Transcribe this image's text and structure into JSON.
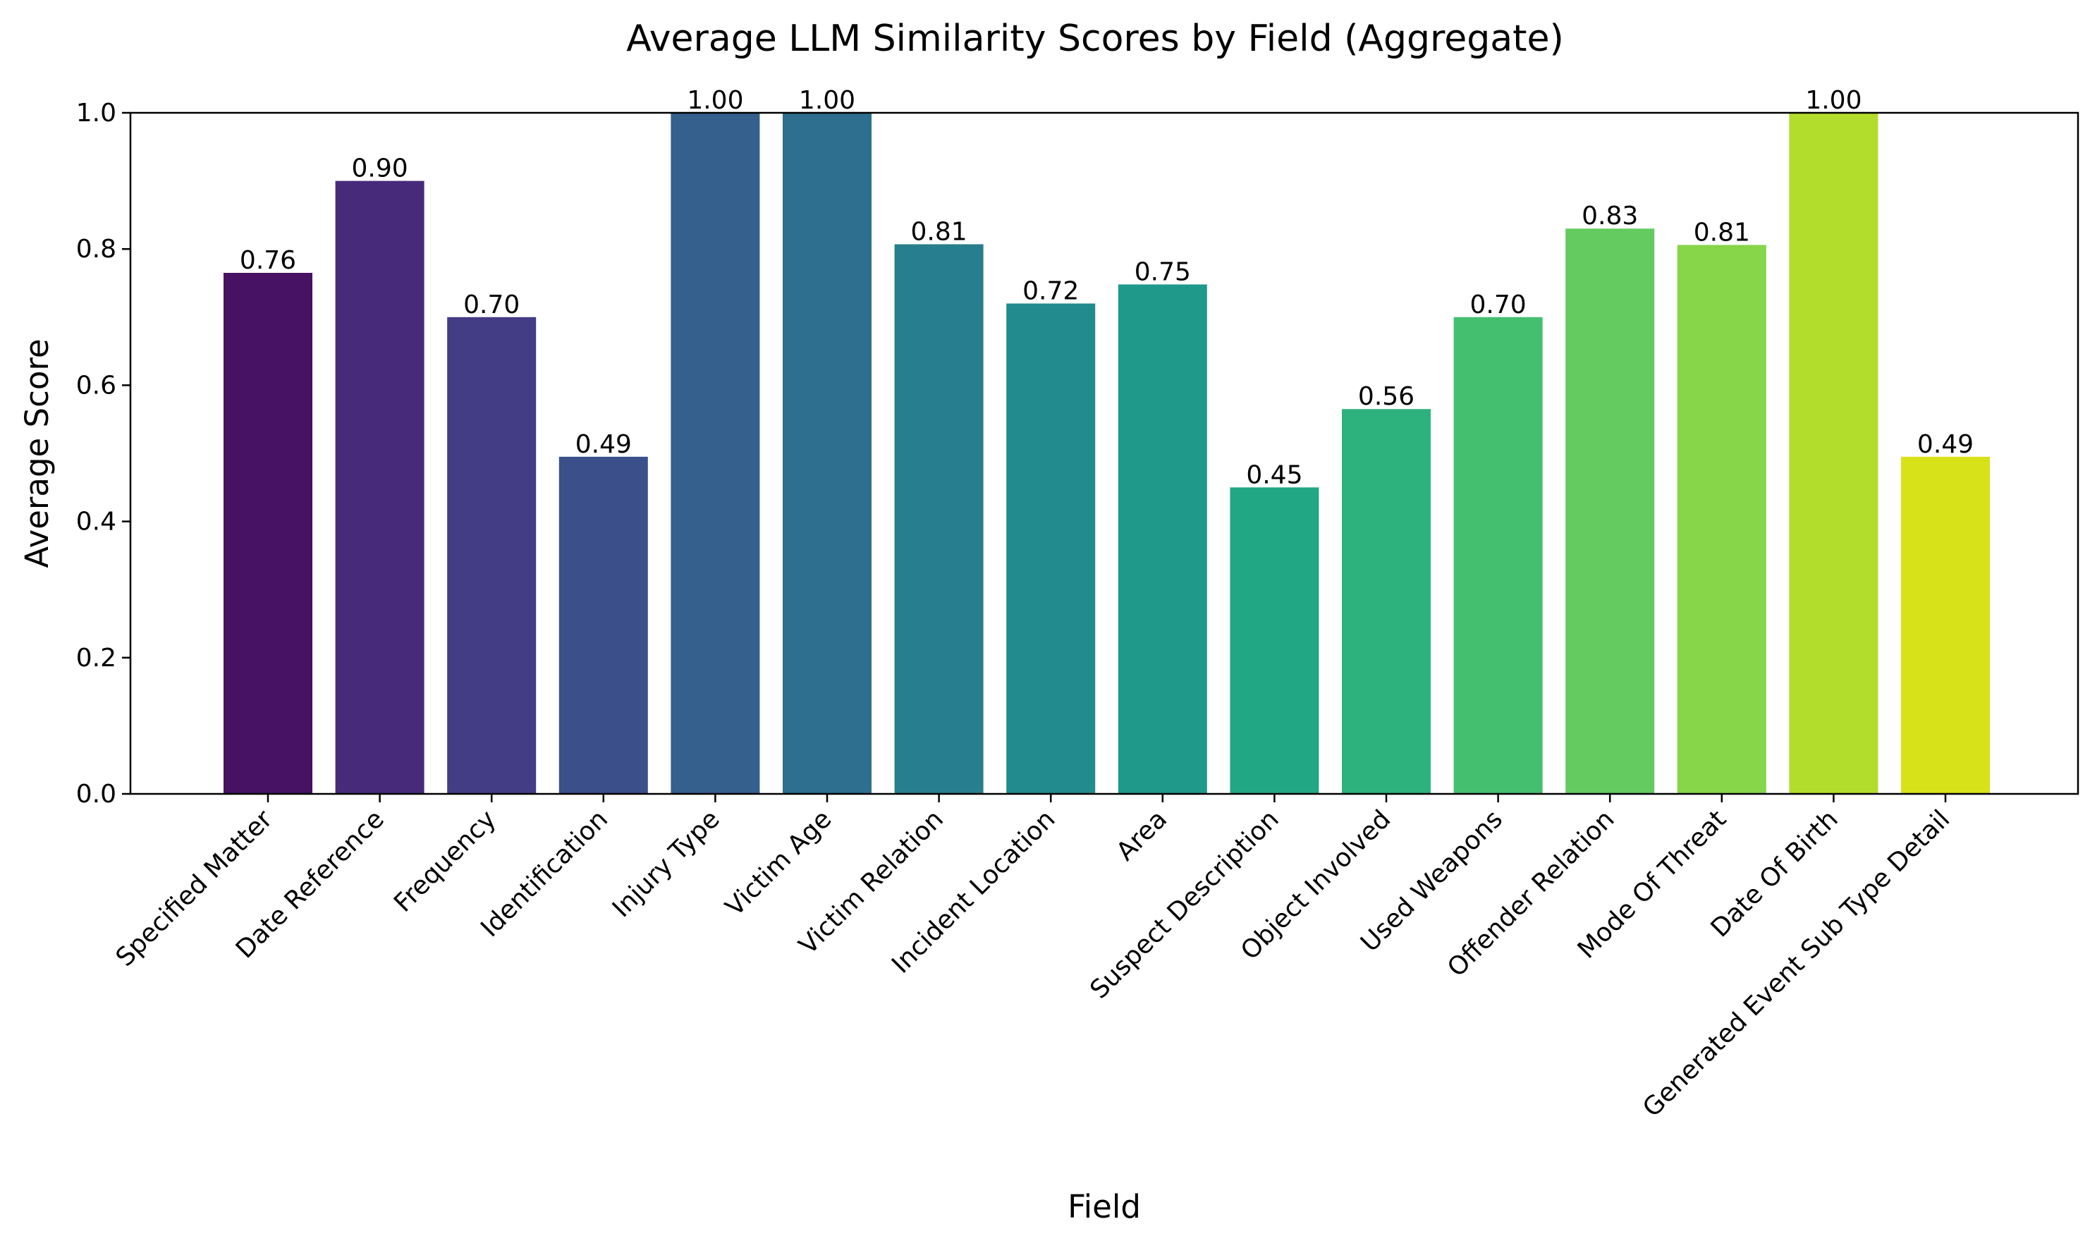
{
  "chart_data": {
    "type": "bar",
    "title": "Average LLM Similarity Scores by Field (Aggregate)",
    "xlabel": "Field",
    "ylabel": "Average Score",
    "ylim": [
      0,
      1.0
    ],
    "yticks": [
      "0.0",
      "0.2",
      "0.4",
      "0.6",
      "0.8",
      "1.0"
    ],
    "ytick_values": [
      0.0,
      0.2,
      0.4,
      0.6,
      0.8,
      1.0
    ],
    "grid": false,
    "legend": "none",
    "categories": [
      "Specified Matter",
      "Date Reference",
      "Frequency",
      "Identification",
      "Injury Type",
      "Victim Age",
      "Victim Relation",
      "Incident Location",
      "Area",
      "Suspect Description",
      "Object Involved",
      "Used Weapons",
      "Offender Relation",
      "Mode Of Threat",
      "Date Of Birth",
      "Generated Event Sub Type Detail"
    ],
    "values": [
      0.765,
      0.9,
      0.7,
      0.495,
      1.0,
      1.0,
      0.807,
      0.72,
      0.748,
      0.45,
      0.565,
      0.7,
      0.83,
      0.806,
      1.0,
      0.495
    ],
    "value_labels": [
      "0.76",
      "0.90",
      "0.70",
      "0.49",
      "1.00",
      "1.00",
      "0.81",
      "0.72",
      "0.75",
      "0.45",
      "0.56",
      "0.70",
      "0.83",
      "0.81",
      "1.00",
      "0.49"
    ],
    "colors": [
      "#471164",
      "#472a7a",
      "#423d84",
      "#3b4f8a",
      "#355f8d",
      "#2e6e8e",
      "#277e8e",
      "#228b8d",
      "#1f998a",
      "#22a785",
      "#2db27d",
      "#44bf70",
      "#63cb5f",
      "#87d549",
      "#b2dd2d",
      "#d8e219"
    ]
  }
}
